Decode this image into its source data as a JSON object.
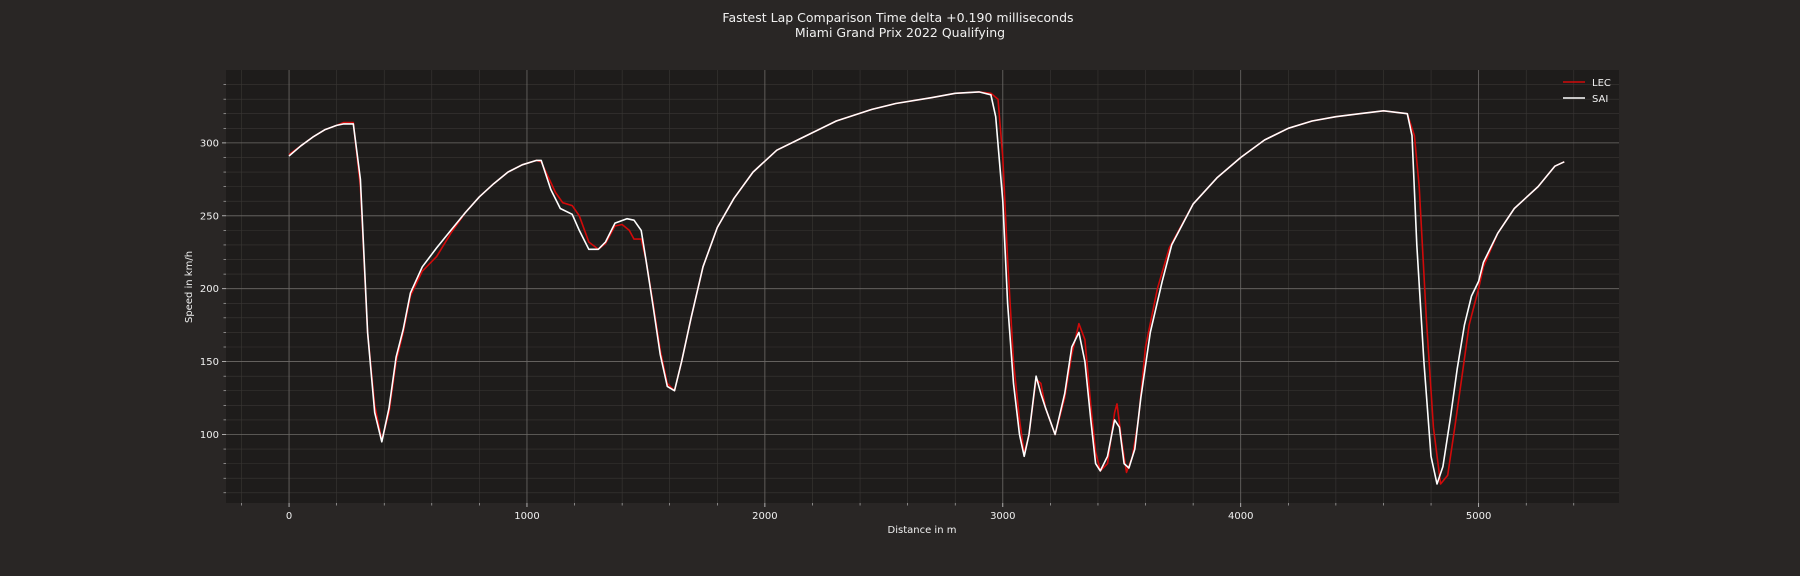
{
  "chart_data": {
    "type": "line",
    "title": "Fastest Lap Comparison  Time delta +0.190 milliseconds",
    "subtitle": "Miami Grand Prix 2022 Qualifying",
    "xlabel": "Distance in m",
    "ylabel": "Speed in km/h",
    "xlim": [
      -265,
      5590
    ],
    "ylim": [
      53,
      350
    ],
    "x_ticks": [
      0,
      1000,
      2000,
      3000,
      4000,
      5000
    ],
    "x_tick_labels": [
      "0",
      "1000",
      "2000",
      "3000",
      "4000",
      "5000"
    ],
    "y_ticks": [
      100,
      150,
      200,
      250,
      300
    ],
    "y_tick_labels": [
      "100",
      "150",
      "200",
      "250",
      "300"
    ],
    "grid": true,
    "legend_position": "top-right",
    "series": [
      {
        "name": "LEC",
        "color": "#d10a0a",
        "points": [
          [
            0,
            292
          ],
          [
            50,
            298
          ],
          [
            100,
            304
          ],
          [
            150,
            309
          ],
          [
            200,
            312
          ],
          [
            230,
            314
          ],
          [
            270,
            314
          ],
          [
            300,
            270
          ],
          [
            330,
            170
          ],
          [
            360,
            120
          ],
          [
            390,
            96
          ],
          [
            420,
            115
          ],
          [
            450,
            150
          ],
          [
            480,
            170
          ],
          [
            510,
            195
          ],
          [
            560,
            212
          ],
          [
            620,
            222
          ],
          [
            680,
            238
          ],
          [
            740,
            252
          ],
          [
            800,
            263
          ],
          [
            860,
            272
          ],
          [
            920,
            280
          ],
          [
            980,
            285
          ],
          [
            1040,
            288
          ],
          [
            1060,
            287
          ],
          [
            1120,
            266
          ],
          [
            1150,
            259
          ],
          [
            1190,
            257
          ],
          [
            1220,
            250
          ],
          [
            1260,
            232
          ],
          [
            1300,
            227
          ],
          [
            1330,
            231
          ],
          [
            1370,
            243
          ],
          [
            1400,
            244
          ],
          [
            1430,
            240
          ],
          [
            1450,
            234
          ],
          [
            1480,
            234
          ],
          [
            1500,
            220
          ],
          [
            1530,
            190
          ],
          [
            1560,
            158
          ],
          [
            1590,
            135
          ],
          [
            1620,
            130
          ],
          [
            1650,
            150
          ],
          [
            1690,
            180
          ],
          [
            1740,
            215
          ],
          [
            1800,
            242
          ],
          [
            1870,
            262
          ],
          [
            1950,
            280
          ],
          [
            2050,
            295
          ],
          [
            2150,
            303
          ],
          [
            2300,
            315
          ],
          [
            2450,
            323
          ],
          [
            2550,
            327
          ],
          [
            2700,
            331
          ],
          [
            2800,
            334
          ],
          [
            2900,
            335
          ],
          [
            2950,
            334
          ],
          [
            2980,
            330
          ],
          [
            3000,
            290
          ],
          [
            3020,
            220
          ],
          [
            3045,
            150
          ],
          [
            3070,
            110
          ],
          [
            3090,
            87
          ],
          [
            3110,
            100
          ],
          [
            3140,
            138
          ],
          [
            3160,
            135
          ],
          [
            3180,
            118
          ],
          [
            3220,
            100
          ],
          [
            3260,
            125
          ],
          [
            3290,
            155
          ],
          [
            3320,
            176
          ],
          [
            3345,
            165
          ],
          [
            3370,
            120
          ],
          [
            3390,
            88
          ],
          [
            3410,
            75
          ],
          [
            3440,
            80
          ],
          [
            3470,
            115
          ],
          [
            3480,
            121
          ],
          [
            3500,
            95
          ],
          [
            3520,
            74
          ],
          [
            3545,
            85
          ],
          [
            3570,
            110
          ],
          [
            3600,
            160
          ],
          [
            3650,
            200
          ],
          [
            3700,
            228
          ],
          [
            3800,
            258
          ],
          [
            3900,
            276
          ],
          [
            4000,
            290
          ],
          [
            4100,
            302
          ],
          [
            4200,
            310
          ],
          [
            4300,
            315
          ],
          [
            4400,
            318
          ],
          [
            4500,
            320
          ],
          [
            4600,
            322
          ],
          [
            4700,
            320
          ],
          [
            4730,
            305
          ],
          [
            4750,
            270
          ],
          [
            4780,
            180
          ],
          [
            4810,
            105
          ],
          [
            4840,
            66
          ],
          [
            4870,
            72
          ],
          [
            4900,
            105
          ],
          [
            4930,
            140
          ],
          [
            4960,
            175
          ],
          [
            5000,
            200
          ],
          [
            5020,
            215
          ],
          [
            5080,
            238
          ],
          [
            5150,
            255
          ],
          [
            5250,
            270
          ],
          [
            5320,
            284
          ],
          [
            5360,
            287
          ]
        ]
      },
      {
        "name": "SAI",
        "color": "#ffffff",
        "points": [
          [
            0,
            291
          ],
          [
            50,
            298
          ],
          [
            100,
            304
          ],
          [
            150,
            309
          ],
          [
            200,
            312
          ],
          [
            230,
            313
          ],
          [
            270,
            313
          ],
          [
            300,
            275
          ],
          [
            330,
            170
          ],
          [
            360,
            115
          ],
          [
            390,
            95
          ],
          [
            420,
            118
          ],
          [
            450,
            153
          ],
          [
            480,
            172
          ],
          [
            510,
            197
          ],
          [
            560,
            215
          ],
          [
            620,
            228
          ],
          [
            680,
            240
          ],
          [
            740,
            252
          ],
          [
            800,
            263
          ],
          [
            860,
            272
          ],
          [
            920,
            280
          ],
          [
            980,
            285
          ],
          [
            1040,
            288
          ],
          [
            1060,
            288
          ],
          [
            1100,
            268
          ],
          [
            1140,
            255
          ],
          [
            1190,
            251
          ],
          [
            1220,
            240
          ],
          [
            1260,
            227
          ],
          [
            1300,
            227
          ],
          [
            1330,
            232
          ],
          [
            1370,
            245
          ],
          [
            1420,
            248
          ],
          [
            1450,
            247
          ],
          [
            1480,
            240
          ],
          [
            1500,
            220
          ],
          [
            1530,
            188
          ],
          [
            1560,
            155
          ],
          [
            1590,
            133
          ],
          [
            1620,
            130
          ],
          [
            1650,
            150
          ],
          [
            1690,
            180
          ],
          [
            1740,
            215
          ],
          [
            1800,
            242
          ],
          [
            1870,
            262
          ],
          [
            1950,
            280
          ],
          [
            2050,
            295
          ],
          [
            2150,
            303
          ],
          [
            2300,
            315
          ],
          [
            2450,
            323
          ],
          [
            2550,
            327
          ],
          [
            2700,
            331
          ],
          [
            2800,
            334
          ],
          [
            2900,
            335
          ],
          [
            2950,
            333
          ],
          [
            2970,
            318
          ],
          [
            3000,
            260
          ],
          [
            3020,
            190
          ],
          [
            3045,
            135
          ],
          [
            3070,
            100
          ],
          [
            3090,
            85
          ],
          [
            3110,
            100
          ],
          [
            3140,
            140
          ],
          [
            3160,
            128
          ],
          [
            3180,
            118
          ],
          [
            3220,
            100
          ],
          [
            3260,
            128
          ],
          [
            3290,
            160
          ],
          [
            3320,
            170
          ],
          [
            3345,
            150
          ],
          [
            3370,
            110
          ],
          [
            3390,
            80
          ],
          [
            3410,
            75
          ],
          [
            3440,
            85
          ],
          [
            3470,
            110
          ],
          [
            3490,
            105
          ],
          [
            3510,
            80
          ],
          [
            3530,
            77
          ],
          [
            3555,
            90
          ],
          [
            3580,
            125
          ],
          [
            3620,
            170
          ],
          [
            3670,
            205
          ],
          [
            3710,
            230
          ],
          [
            3800,
            258
          ],
          [
            3900,
            276
          ],
          [
            4000,
            290
          ],
          [
            4100,
            302
          ],
          [
            4200,
            310
          ],
          [
            4300,
            315
          ],
          [
            4400,
            318
          ],
          [
            4500,
            320
          ],
          [
            4600,
            322
          ],
          [
            4700,
            320
          ],
          [
            4720,
            305
          ],
          [
            4740,
            230
          ],
          [
            4770,
            150
          ],
          [
            4800,
            85
          ],
          [
            4825,
            66
          ],
          [
            4850,
            78
          ],
          [
            4880,
            110
          ],
          [
            4910,
            145
          ],
          [
            4940,
            175
          ],
          [
            4970,
            195
          ],
          [
            5000,
            205
          ],
          [
            5020,
            218
          ],
          [
            5080,
            238
          ],
          [
            5150,
            255
          ],
          [
            5250,
            270
          ],
          [
            5320,
            284
          ],
          [
            5360,
            287
          ]
        ]
      }
    ]
  }
}
